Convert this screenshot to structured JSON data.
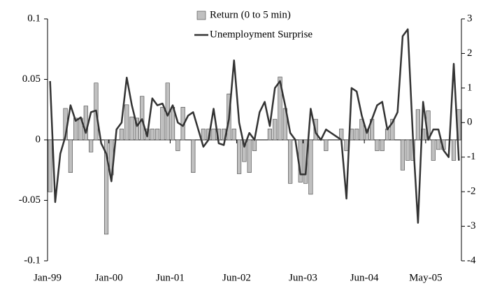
{
  "chart_data": {
    "type": "bar",
    "categories": [
      "Jan-99",
      null,
      null,
      null,
      null,
      null,
      null,
      null,
      null,
      null,
      null,
      null,
      "Jan-00",
      null,
      null,
      null,
      null,
      null,
      null,
      null,
      null,
      null,
      null,
      null,
      "Jun-01",
      null,
      null,
      null,
      null,
      null,
      null,
      null,
      null,
      null,
      null,
      null,
      null,
      "Jun-02",
      null,
      null,
      null,
      null,
      null,
      null,
      null,
      null,
      null,
      null,
      null,
      null,
      "Jun-03",
      null,
      null,
      null,
      null,
      null,
      null,
      null,
      null,
      null,
      null,
      null,
      "Jun-04",
      null,
      null,
      null,
      null,
      null,
      null,
      null,
      null,
      null,
      null,
      null,
      "May-05",
      null,
      null,
      null,
      null,
      null,
      null
    ],
    "series": [
      {
        "name": "Return (0 to 5 min)",
        "type": "bar",
        "color": "#c0c0c0",
        "values": [
          -0.043,
          0,
          0,
          0.026,
          -0.027,
          0.018,
          0.018,
          0.028,
          -0.01,
          0.047,
          0,
          -0.078,
          -0.029,
          0,
          0.009,
          0.029,
          0.019,
          0.018,
          0.036,
          0.009,
          0.009,
          0.009,
          0.027,
          0.047,
          0.027,
          -0.009,
          0.027,
          0,
          -0.027,
          0,
          0.009,
          0.009,
          0.009,
          0.009,
          0.009,
          0.038,
          0.009,
          -0.028,
          -0.018,
          -0.027,
          -0.009,
          0,
          0,
          0.009,
          0.017,
          0.052,
          0.026,
          -0.036,
          0,
          -0.035,
          -0.036,
          -0.045,
          0.017,
          0,
          -0.009,
          0,
          0,
          0.009,
          -0.009,
          0.009,
          0.009,
          0.017,
          0.009,
          0.017,
          -0.009,
          -0.009,
          0.009,
          0.017,
          0,
          -0.025,
          -0.017,
          -0.017,
          0.025,
          0.009,
          0.024,
          -0.017,
          -0.008,
          -0.008,
          0,
          -0.017,
          0.025
        ]
      },
      {
        "name": "Unemployment Surprise",
        "type": "line",
        "axis": "y2",
        "color": "#333333",
        "values": [
          1.2,
          -2.3,
          -0.9,
          -0.4,
          0.5,
          0.05,
          0.15,
          -0.3,
          0.3,
          0.35,
          -0.6,
          -0.9,
          -1.7,
          -0.2,
          0.0,
          1.3,
          0.5,
          -0.1,
          0.1,
          -0.4,
          0.7,
          0.5,
          0.55,
          0.2,
          0.5,
          0.0,
          -0.1,
          0.2,
          0.3,
          -0.2,
          -0.7,
          -0.5,
          0.4,
          -0.6,
          -0.65,
          0.1,
          1.8,
          0.0,
          -0.7,
          -0.3,
          -0.5,
          0.3,
          0.6,
          -0.1,
          1.0,
          1.2,
          0.5,
          -0.3,
          -0.5,
          -1.5,
          -1.5,
          0.4,
          -0.3,
          -0.5,
          -0.2,
          -0.3,
          -0.4,
          -0.5,
          -2.2,
          1.0,
          0.9,
          0.2,
          -0.3,
          0.1,
          0.5,
          0.6,
          -0.2,
          0.0,
          0.3,
          2.5,
          2.7,
          -0.4,
          -2.9,
          0.6,
          -0.5,
          -0.2,
          -0.2,
          -0.8,
          -1.0,
          1.7,
          -1.1
        ]
      }
    ],
    "ylim": [
      -0.1,
      0.1
    ],
    "yticks": [
      -0.1,
      -0.05,
      0,
      0.05,
      0.1
    ],
    "y2lim": [
      -4,
      3
    ],
    "y2ticks": [
      -4,
      -3,
      -2,
      -1,
      0,
      1,
      2,
      3
    ],
    "legend": "top"
  }
}
